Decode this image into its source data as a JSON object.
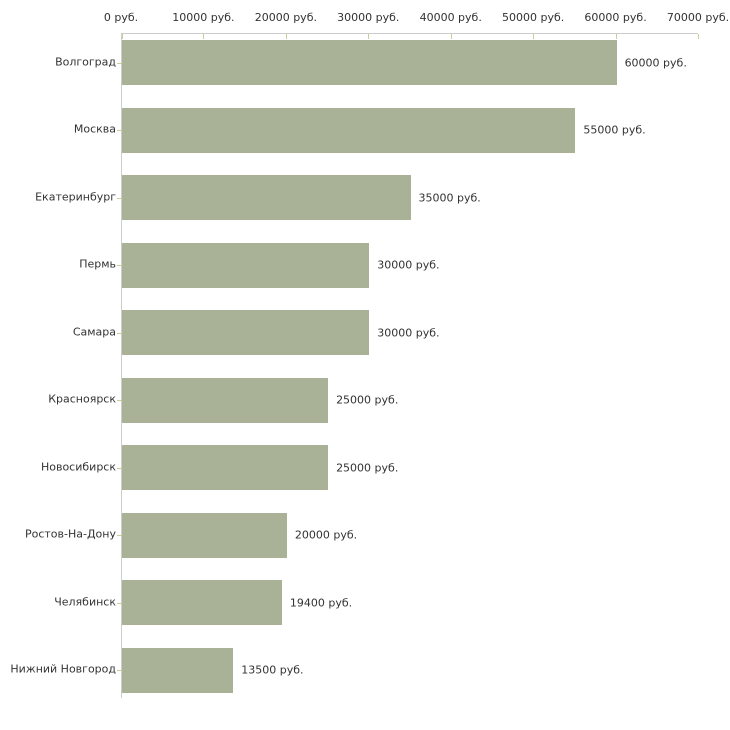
{
  "chart_data": {
    "type": "bar",
    "orientation": "horizontal",
    "title": "",
    "xlabel": "",
    "ylabel": "",
    "xlim": [
      0,
      70000
    ],
    "grid": false,
    "legend": "none",
    "x_ticks": [
      {
        "value": 0,
        "label": "0 руб."
      },
      {
        "value": 10000,
        "label": "10000 руб."
      },
      {
        "value": 20000,
        "label": "20000 руб."
      },
      {
        "value": 30000,
        "label": "30000 руб."
      },
      {
        "value": 40000,
        "label": "40000 руб."
      },
      {
        "value": 50000,
        "label": "50000 руб."
      },
      {
        "value": 60000,
        "label": "60000 руб."
      },
      {
        "value": 70000,
        "label": "70000 руб."
      }
    ],
    "categories": [
      "Волгоград",
      "Москва",
      "Екатеринбург",
      "Пермь",
      "Самара",
      "Красноярск",
      "Новосибирск",
      "Ростов-На-Дону",
      "Челябинск",
      "Нижний Новгород"
    ],
    "values": [
      60000,
      55000,
      35000,
      30000,
      30000,
      25000,
      25000,
      20000,
      19400,
      13500
    ],
    "value_labels": [
      "60000 руб.",
      "55000 руб.",
      "35000 руб.",
      "30000 руб.",
      "30000 руб.",
      "25000 руб.",
      "25000 руб.",
      "20000 руб.",
      "19400 руб.",
      "13500 руб."
    ],
    "colors": {
      "bar": "#a9b297",
      "axis": "#cccccc",
      "tick": "#cccc99",
      "text": "#333333",
      "background": "#ffffff"
    }
  }
}
